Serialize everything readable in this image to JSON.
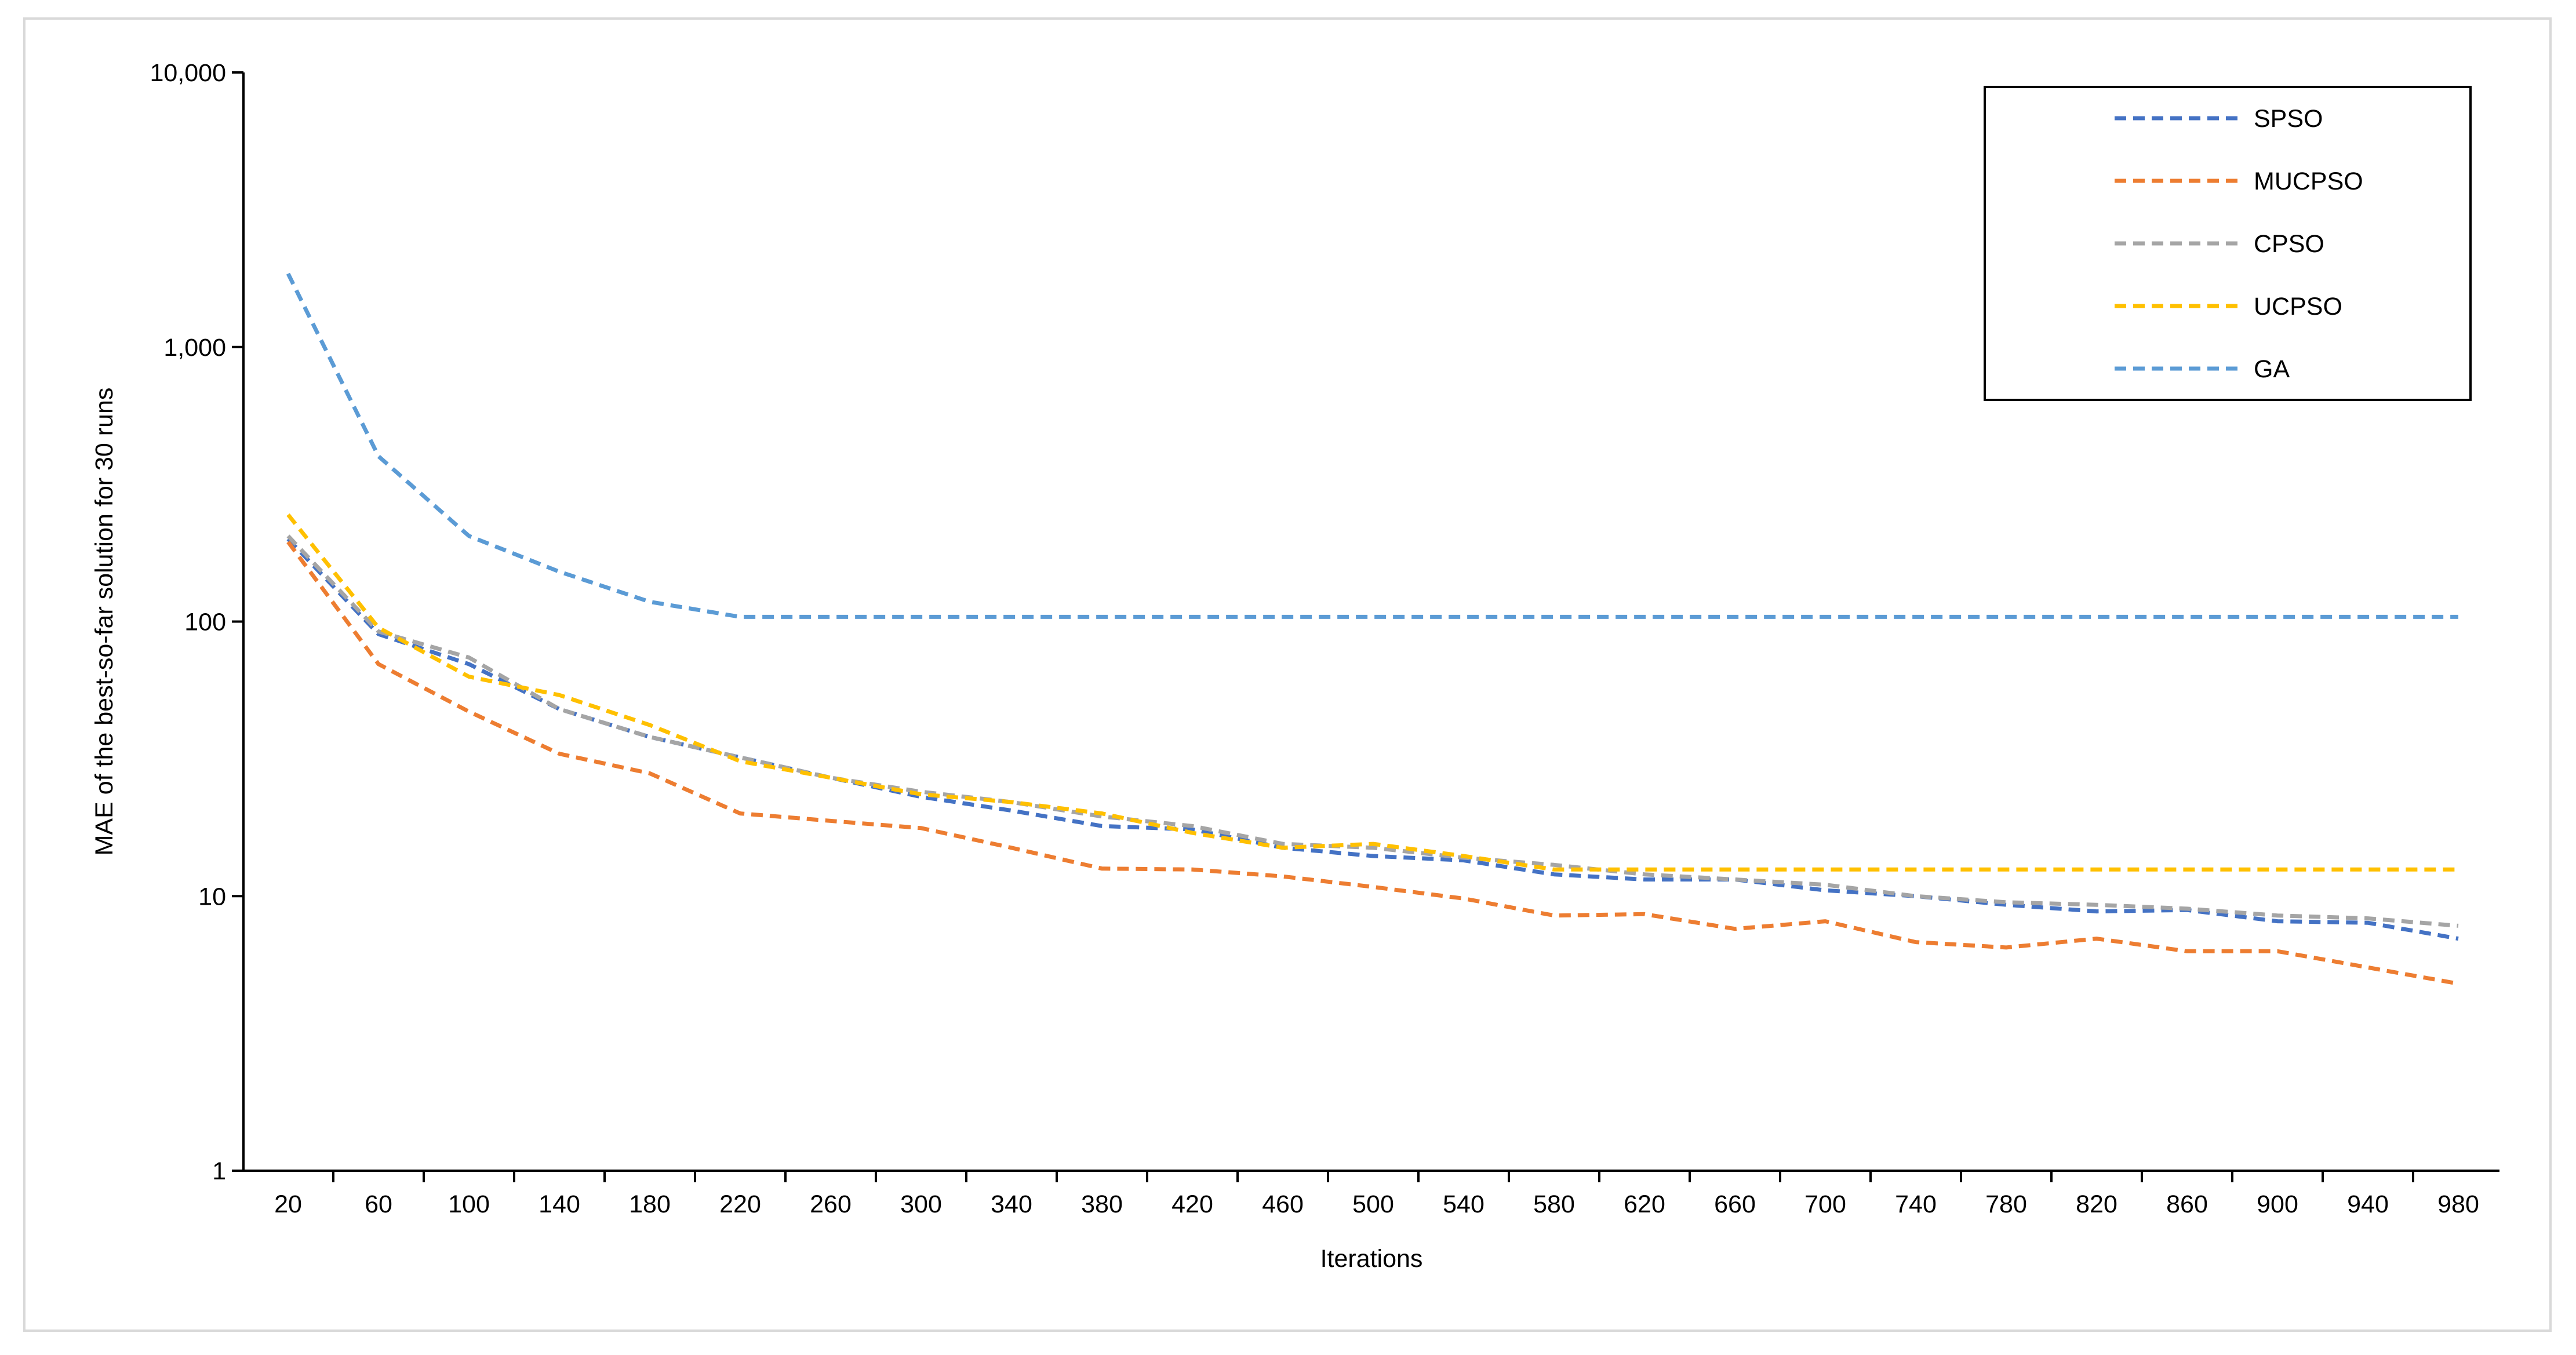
{
  "chart_data": {
    "type": "line",
    "title": "",
    "xlabel": "Iterations",
    "ylabel": "MAE of the best-so-far solution for 30 runs",
    "y_scale": "log",
    "ylim": [
      1,
      10000
    ],
    "y_ticks": [
      "1",
      "10",
      "100",
      "1,000",
      "10,000"
    ],
    "y_tick_values": [
      1,
      10,
      100,
      1000,
      10000
    ],
    "grid": false,
    "legend_position": "top-right",
    "x": [
      20,
      60,
      100,
      140,
      180,
      220,
      260,
      300,
      340,
      380,
      420,
      460,
      500,
      540,
      580,
      620,
      660,
      700,
      740,
      780,
      820,
      860,
      900,
      940,
      980
    ],
    "x_tick_labels": [
      "20",
      "60",
      "100",
      "140",
      "180",
      "220",
      "260",
      "300",
      "340",
      "380",
      "420",
      "460",
      "500",
      "540",
      "580",
      "620",
      "660",
      "700",
      "740",
      "780",
      "820",
      "860",
      "900",
      "940",
      "980"
    ],
    "series": [
      {
        "name": "SPSO",
        "color": "#4472c4",
        "values": [
          200,
          90,
          70,
          48,
          38,
          32,
          27,
          23,
          20.5,
          18,
          17.5,
          15,
          14,
          13.5,
          12,
          11.5,
          11.5,
          10.5,
          10,
          9.3,
          8.8,
          8.9,
          8.1,
          8.0,
          7.0
        ]
      },
      {
        "name": "MUCPSO",
        "color": "#ed7d31",
        "values": [
          195,
          70,
          47,
          33,
          28,
          20,
          18.8,
          17.7,
          15,
          12.6,
          12.5,
          11.8,
          10.8,
          9.8,
          8.5,
          8.6,
          7.6,
          8.1,
          6.8,
          6.5,
          7.0,
          6.3,
          6.3,
          5.5,
          4.8
        ]
      },
      {
        "name": "CPSO",
        "color": "#a5a5a5",
        "values": [
          205,
          92,
          74,
          48,
          38,
          32,
          27,
          24,
          22,
          19.5,
          18,
          15.5,
          15,
          13.8,
          13,
          12,
          11.5,
          11,
          10,
          9.5,
          9.3,
          9.0,
          8.5,
          8.3,
          7.8
        ]
      },
      {
        "name": "UCPSO",
        "color": "#ffc000",
        "values": [
          245,
          95,
          63,
          54,
          42,
          31,
          27,
          23.5,
          22,
          20,
          17,
          15,
          15.5,
          14,
          12.5,
          12.5,
          12.5,
          12.5,
          12.5,
          12.5,
          12.5,
          12.5,
          12.5,
          12.5,
          12.5
        ]
      },
      {
        "name": "GA",
        "color": "#5b9bd5",
        "values": [
          1850,
          400,
          205,
          152,
          118,
          104,
          104,
          104,
          104,
          104,
          104,
          104,
          104,
          104,
          104,
          104,
          104,
          104,
          104,
          104,
          104,
          104,
          104,
          104,
          104
        ]
      }
    ]
  }
}
